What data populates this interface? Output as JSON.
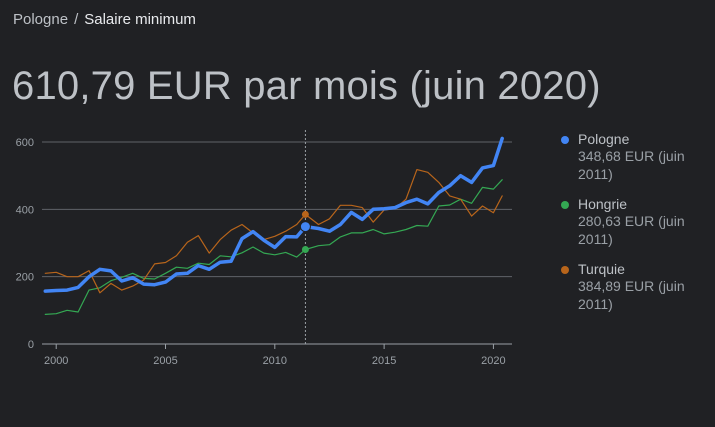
{
  "breadcrumb": {
    "parent": "Pologne",
    "separator": "/",
    "current": "Salaire minimum"
  },
  "headline": "610,79 EUR par mois (juin 2020)",
  "legend": [
    {
      "name": "Pologne",
      "value": "348,68 EUR (juin 2011)",
      "color": "#4285f4"
    },
    {
      "name": "Hongrie",
      "value": "280,63 EUR (juin 2011)",
      "color": "#34a853"
    },
    {
      "name": "Turquie",
      "value": "384,89 EUR (juin 2011)",
      "color": "#b8651b"
    }
  ],
  "chart_data": {
    "type": "line",
    "xlim": [
      1999.35,
      2020.85
    ],
    "ylim": [
      0,
      600
    ],
    "yticks": [
      0,
      200,
      400,
      600
    ],
    "xticks": [
      2000,
      2005,
      2010,
      2015,
      2020
    ],
    "grid": true,
    "legend_position": "right",
    "hover_x": 2011.4,
    "series": [
      {
        "name": "Pologne",
        "color": "#4285f4",
        "highlight": true,
        "x": [
          1999.5,
          2000.0,
          2000.5,
          2001.0,
          2001.5,
          2002.0,
          2002.5,
          2003.0,
          2003.5,
          2004.0,
          2004.5,
          2005.0,
          2005.5,
          2006.0,
          2006.5,
          2007.0,
          2007.5,
          2008.0,
          2008.5,
          2009.0,
          2009.5,
          2010.0,
          2010.5,
          2011.0,
          2011.4,
          2012.0,
          2012.5,
          2013.0,
          2013.5,
          2014.0,
          2014.5,
          2015.0,
          2015.5,
          2016.0,
          2016.5,
          2017.0,
          2017.5,
          2018.0,
          2018.5,
          2019.0,
          2019.5,
          2020.0,
          2020.4
        ],
        "values": [
          157,
          159,
          160,
          168,
          200,
          222,
          217,
          187,
          197,
          178,
          176,
          184,
          208,
          210,
          233,
          222,
          243,
          246,
          313,
          334,
          308,
          287,
          319,
          318,
          348.68,
          343,
          335,
          355,
          391,
          370,
          400,
          402,
          405,
          420,
          430,
          416,
          450,
          470,
          500,
          480,
          523,
          530,
          610.79
        ]
      },
      {
        "name": "Hongrie",
        "color": "#34a853",
        "x": [
          1999.5,
          2000.0,
          2000.5,
          2001.0,
          2001.5,
          2002.0,
          2002.5,
          2003.0,
          2003.5,
          2004.0,
          2004.5,
          2005.0,
          2005.5,
          2006.0,
          2006.5,
          2007.0,
          2007.5,
          2008.0,
          2008.5,
          2009.0,
          2009.5,
          2010.0,
          2010.5,
          2011.0,
          2011.4,
          2012.0,
          2012.5,
          2013.0,
          2013.5,
          2014.0,
          2014.5,
          2015.0,
          2015.5,
          2016.0,
          2016.5,
          2017.0,
          2017.5,
          2018.0,
          2018.5,
          2019.0,
          2019.5,
          2020.0,
          2020.4
        ],
        "values": [
          88,
          90,
          100,
          95,
          160,
          167,
          188,
          198,
          210,
          195,
          193,
          210,
          228,
          225,
          240,
          236,
          262,
          259,
          271,
          288,
          270,
          265,
          272,
          258,
          280.63,
          292,
          295,
          318,
          330,
          330,
          340,
          327,
          332,
          340,
          352,
          350,
          410,
          413,
          430,
          418,
          465,
          460,
          488
        ]
      },
      {
        "name": "Turquie",
        "color": "#b8651b",
        "x": [
          1999.5,
          2000.0,
          2000.5,
          2001.0,
          2001.5,
          2002.0,
          2002.5,
          2003.0,
          2003.5,
          2004.0,
          2004.5,
          2005.0,
          2005.5,
          2006.0,
          2006.5,
          2007.0,
          2007.5,
          2008.0,
          2008.5,
          2009.0,
          2009.5,
          2010.0,
          2010.5,
          2011.0,
          2011.4,
          2012.0,
          2012.5,
          2013.0,
          2013.5,
          2014.0,
          2014.5,
          2015.0,
          2015.5,
          2016.0,
          2016.5,
          2017.0,
          2017.5,
          2018.0,
          2018.5,
          2019.0,
          2019.5,
          2020.0,
          2020.4
        ],
        "values": [
          210,
          213,
          200,
          200,
          218,
          152,
          180,
          160,
          172,
          190,
          238,
          242,
          262,
          302,
          322,
          270,
          310,
          338,
          355,
          330,
          310,
          320,
          335,
          355,
          384.89,
          355,
          372,
          412,
          412,
          405,
          362,
          398,
          402,
          430,
          518,
          510,
          480,
          440,
          430,
          380,
          410,
          390,
          440
        ]
      }
    ]
  }
}
